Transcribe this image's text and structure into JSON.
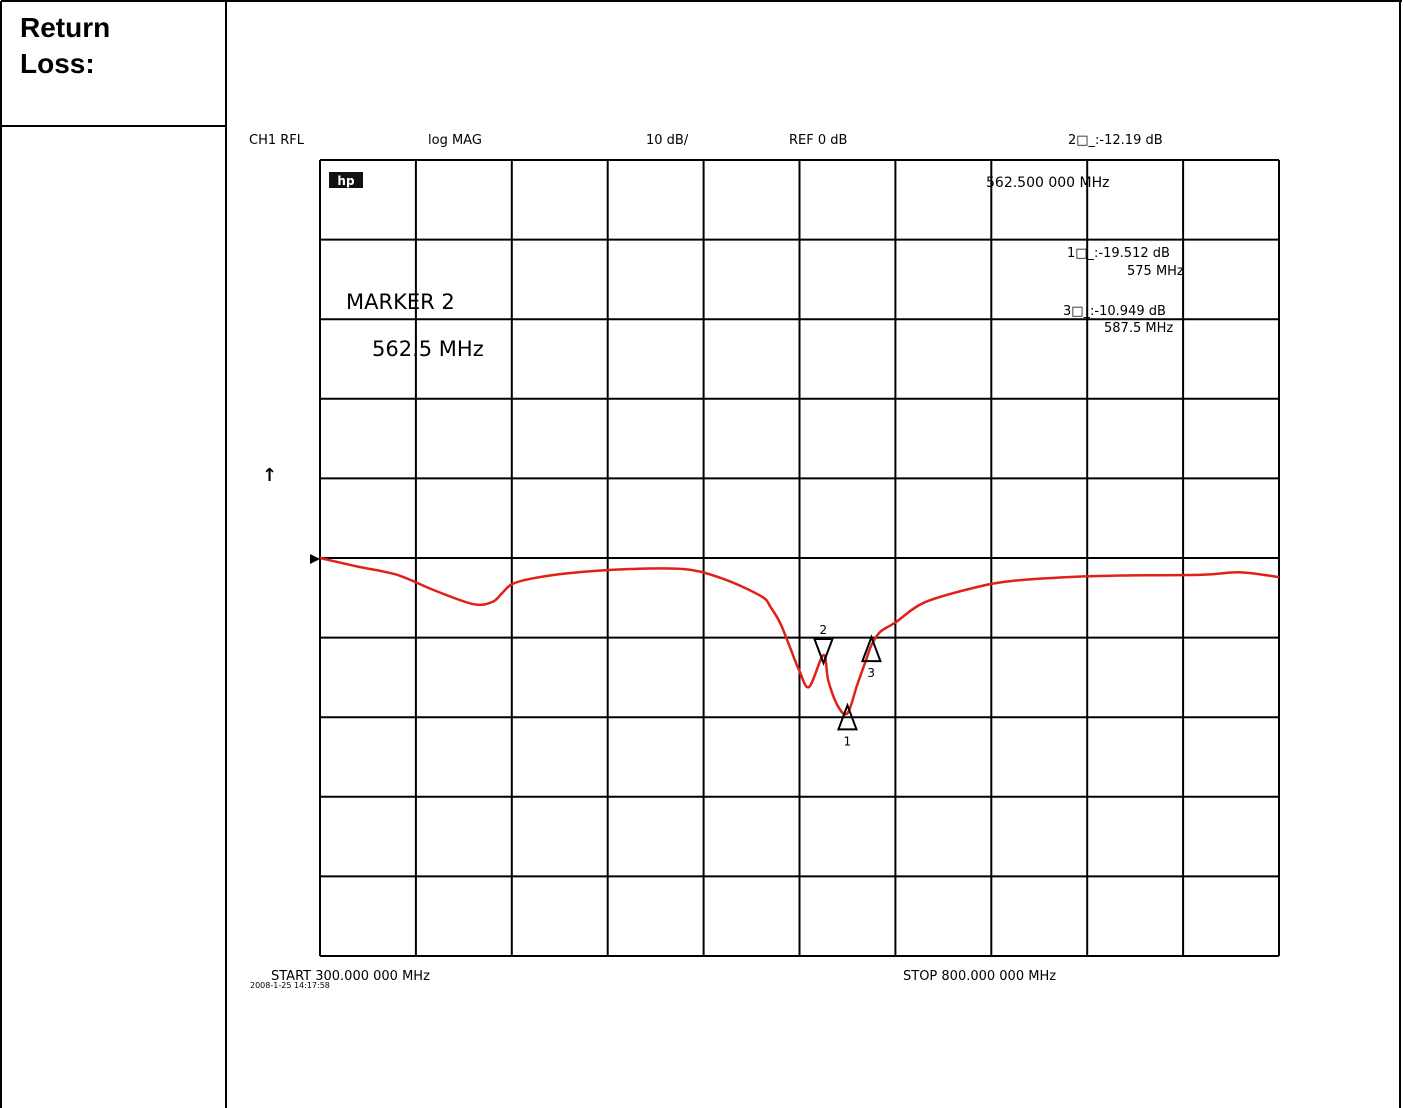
{
  "document": {
    "heading": "Return\nLoss:"
  },
  "colors": {
    "trace": "#e0211a",
    "grid": "#000000",
    "background": "#ffffff"
  },
  "chart_data": {
    "type": "line",
    "header": {
      "channel": "CH1 RFL",
      "format": "log MAG",
      "scale": "10 dB/",
      "reference": "REF 0 dB",
      "active_marker_readout": "2□_:-12.19  dB",
      "active_marker_freq": "562.500 000 MHz"
    },
    "logo_text": "hp",
    "scale_marker_symbol": "↑",
    "annotation": {
      "line1": "MARKER 2",
      "line2": "562.5 MHz"
    },
    "marker_readouts": [
      {
        "label": "1□_:-19.512 dB",
        "freq": "575 MHz"
      },
      {
        "label": "3□_:-10.949 dB",
        "freq": "587.5 MHz"
      }
    ],
    "footer": {
      "start": "START  300.000 000 MHz",
      "stop": "STOP  800.000 000 MHz",
      "timestamp": "2008-1-25 14:17:58"
    },
    "x_range_mhz": [
      300,
      800
    ],
    "y_ref_db": 0,
    "y_scale_db_per_div": 10,
    "ylim_db": [
      -50,
      50
    ],
    "grid": true,
    "series": [
      {
        "x": [
          300,
          320,
          340,
          360,
          380,
          390,
          395,
          400,
          410,
          430,
          460,
          490,
          510,
          530,
          535,
          540,
          545,
          550,
          555,
          562.5,
          565,
          570,
          575,
          580,
          585,
          587.5,
          592,
          600,
          615,
          640,
          660,
          690,
          720,
          760,
          780,
          800
        ],
        "y": [
          0,
          -1.1,
          -2.1,
          -4.1,
          -5.8,
          -5.5,
          -4.4,
          -3.3,
          -2.6,
          -1.9,
          -1.4,
          -1.4,
          -2.6,
          -4.8,
          -6.2,
          -8.2,
          -11.2,
          -14.2,
          -16.2,
          -12.19,
          -15.4,
          -18.6,
          -19.512,
          -16.0,
          -12.6,
          -10.949,
          -9.3,
          -8.1,
          -5.6,
          -3.8,
          -2.9,
          -2.4,
          -2.2,
          -2.1,
          -1.8,
          -2.4
        ]
      }
    ],
    "markers": [
      {
        "id": "1",
        "x": 575,
        "y": -19.512,
        "symbol": "up"
      },
      {
        "id": "2",
        "x": 562.5,
        "y": -12.19,
        "symbol": "down"
      },
      {
        "id": "3",
        "x": 587.5,
        "y": -10.949,
        "symbol": "up"
      }
    ]
  }
}
